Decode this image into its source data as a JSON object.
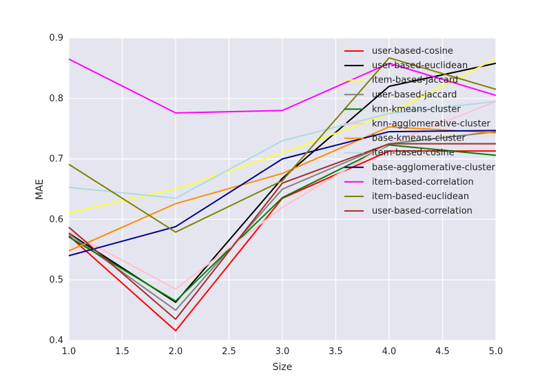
{
  "chart_data": {
    "type": "line",
    "title": "",
    "xlabel": "Size",
    "ylabel": "MAE",
    "xlim": [
      1.0,
      5.0
    ],
    "ylim": [
      0.4,
      0.9
    ],
    "x": [
      1,
      2,
      3,
      4,
      5
    ],
    "xticks": [
      "1.0",
      "1.5",
      "2.0",
      "2.5",
      "3.0",
      "3.5",
      "4.0",
      "4.5",
      "5.0"
    ],
    "yticks": [
      "0.4",
      "0.5",
      "0.6",
      "0.7",
      "0.8",
      "0.9"
    ],
    "grid": true,
    "legend_position": "top-right",
    "background": "#e5e5ef",
    "series": [
      {
        "name": "user-based-cosine",
        "color": "#ff0000",
        "values": [
          0.573,
          0.416,
          0.635,
          0.713,
          0.713
        ]
      },
      {
        "name": "user-based-euclidean",
        "color": "#000000",
        "values": [
          0.577,
          0.463,
          0.668,
          0.82,
          0.858
        ]
      },
      {
        "name": "item-based-jaccard",
        "color": "#ffff33",
        "values": [
          0.611,
          0.65,
          0.71,
          0.775,
          0.866
        ]
      },
      {
        "name": "user-based-jaccard",
        "color": "#808080",
        "values": [
          0.576,
          0.45,
          0.65,
          0.725,
          0.745
        ]
      },
      {
        "name": "knn-kmeans-cluster",
        "color": "#008000",
        "values": [
          0.571,
          0.465,
          0.636,
          0.723,
          0.706
        ]
      },
      {
        "name": "knn-agglomerative-cluster",
        "color": "#ffc0cb",
        "values": [
          0.58,
          0.485,
          0.62,
          0.725,
          0.795
        ]
      },
      {
        "name": "base-kmeans-cluster",
        "color": "#ff8c00",
        "values": [
          0.548,
          0.626,
          0.676,
          0.753,
          0.743
        ]
      },
      {
        "name": "item-based-cosine",
        "color": "#add8e6",
        "values": [
          0.653,
          0.635,
          0.73,
          0.775,
          0.795
        ]
      },
      {
        "name": "base-agglomerative-cluster",
        "color": "#00008b",
        "values": [
          0.54,
          0.588,
          0.7,
          0.745,
          0.747
        ]
      },
      {
        "name": "item-based-correlation",
        "color": "#ff00ff",
        "values": [
          0.865,
          0.776,
          0.78,
          0.858,
          0.805
        ]
      },
      {
        "name": "item-based-euclidean",
        "color": "#808000",
        "values": [
          0.691,
          0.579,
          0.664,
          0.867,
          0.815
        ]
      },
      {
        "name": "user-based-correlation",
        "color": "#a52a2a",
        "values": [
          0.587,
          0.435,
          0.66,
          0.725,
          0.725
        ]
      }
    ]
  }
}
